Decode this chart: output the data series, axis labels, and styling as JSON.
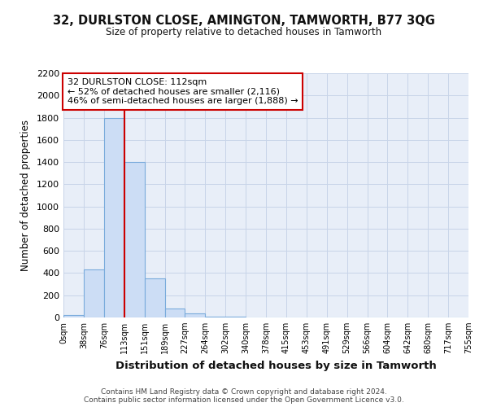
{
  "title_line1": "32, DURLSTON CLOSE, AMINGTON, TAMWORTH, B77 3QG",
  "title_line2": "Size of property relative to detached houses in Tamworth",
  "xlabel": "Distribution of detached houses by size in Tamworth",
  "ylabel": "Number of detached properties",
  "footer_line1": "Contains HM Land Registry data © Crown copyright and database right 2024.",
  "footer_line2": "Contains public sector information licensed under the Open Government Licence v3.0.",
  "bin_labels": [
    "0sqm",
    "38sqm",
    "76sqm",
    "113sqm",
    "151sqm",
    "189sqm",
    "227sqm",
    "264sqm",
    "302sqm",
    "340sqm",
    "378sqm",
    "415sqm",
    "453sqm",
    "491sqm",
    "529sqm",
    "566sqm",
    "604sqm",
    "642sqm",
    "680sqm",
    "717sqm",
    "755sqm"
  ],
  "bar_values": [
    20,
    430,
    1800,
    1400,
    350,
    80,
    35,
    10,
    5,
    0,
    0,
    0,
    0,
    0,
    0,
    0,
    0,
    0,
    0,
    0
  ],
  "bar_color": "#ccddf5",
  "bar_edge_color": "#7aabdc",
  "property_line_x": 3.0,
  "annotation_text": "32 DURLSTON CLOSE: 112sqm\n← 52% of detached houses are smaller (2,116)\n46% of semi-detached houses are larger (1,888) →",
  "annotation_box_color": "#ffffff",
  "annotation_box_edge": "#cc0000",
  "vline_color": "#cc0000",
  "ylim": [
    0,
    2200
  ],
  "yticks": [
    0,
    200,
    400,
    600,
    800,
    1000,
    1200,
    1400,
    1600,
    1800,
    2000,
    2200
  ],
  "grid_color": "#c8d4e8",
  "bg_color": "#ffffff",
  "plot_bg_color": "#e8eef8"
}
